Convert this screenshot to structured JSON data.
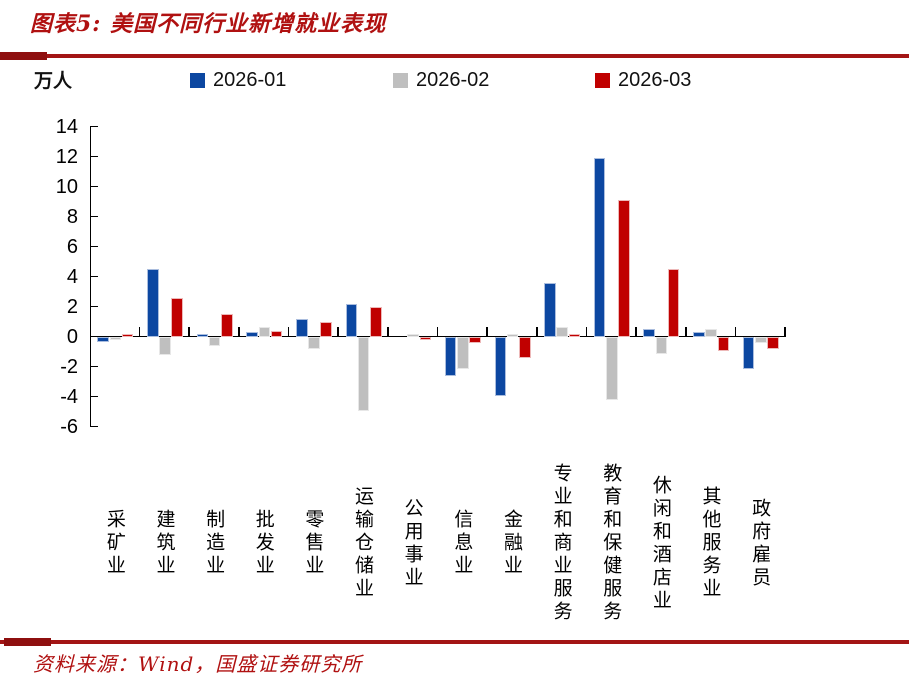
{
  "header": {
    "title": "图表5:  美国不同行业新增就业表现"
  },
  "footer": {
    "source": "资料来源：Wind，国盛证券研究所"
  },
  "chart_data": {
    "type": "bar",
    "title": "美国不同行业新增就业表现",
    "unit_label": "万人",
    "ylabel": "万人",
    "xlabel": "",
    "ylim": [
      -6,
      14
    ],
    "ytick_step": 2,
    "grid": false,
    "legend_position": "top",
    "categories": [
      "采矿业",
      "建筑业",
      "制造业",
      "批发业",
      "零售业",
      "运输仓储业",
      "公用事业",
      "信息业",
      "金融业",
      "专业和商业服务",
      "教育和保健服务",
      "休闲和酒店业",
      "其他服务业",
      "政府雇员"
    ],
    "series": [
      {
        "name": "2026-01",
        "color": "#0C47A1",
        "values": [
          -0.3,
          4.5,
          0.2,
          0.3,
          1.2,
          2.2,
          0.0,
          -2.6,
          -3.9,
          3.6,
          11.9,
          0.5,
          0.3,
          -2.1
        ]
      },
      {
        "name": "2026-02",
        "color": "#BFBFBF",
        "values": [
          -0.2,
          -1.2,
          -0.6,
          0.65,
          -0.8,
          -4.9,
          0.2,
          -2.1,
          0.2,
          0.65,
          -4.2,
          -1.1,
          0.5,
          -0.4
        ]
      },
      {
        "name": "2026-03",
        "color": "#C00000",
        "values": [
          0.2,
          2.6,
          1.5,
          0.4,
          1.0,
          2.0,
          -0.2,
          -0.4,
          -1.4,
          0.2,
          9.1,
          4.5,
          -0.9,
          -0.8
        ]
      }
    ]
  },
  "colors": {
    "accent_red": "#A31515",
    "title_text": "#B01111",
    "axis": "#000000"
  }
}
